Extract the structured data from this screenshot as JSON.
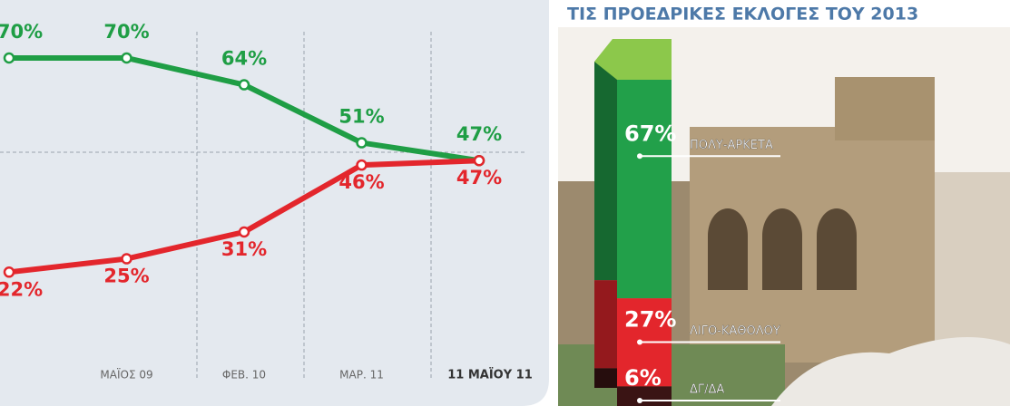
{
  "chart_data": [
    {
      "type": "line",
      "categories": [
        null,
        "ΜΑΪΟΣ 09",
        "ΦΕΒ. 10",
        "ΜΑΡ. 11",
        "11 ΜΑΪΟΥ 11"
      ],
      "series": [
        {
          "color": "#1f9e45",
          "values": [
            70,
            70,
            64,
            51,
            47
          ],
          "value_labels": [
            "70%",
            "70%",
            "64%",
            "51%",
            "47%"
          ]
        },
        {
          "color": "#e3262c",
          "values": [
            22,
            25,
            31,
            46,
            47
          ],
          "value_labels": [
            "22%",
            "25%",
            "31%",
            "46%",
            "47%"
          ]
        }
      ],
      "ylim": [
        -8,
        83
      ]
    },
    {
      "type": "stacked_bar",
      "title": "ΤΙΣ ΠΡΟΕΔΡΙΚΕΣ ΕΚΛΟΓΕΣ ΤΟΥ 2013",
      "series": [
        {
          "name": "ΠΟΛΥ-ΑΡΚΕΤΑ",
          "color": "#22a04a",
          "values": [
            67
          ],
          "value_labels": [
            "67%"
          ]
        },
        {
          "name": "ΛΙΓΟ-ΚΑΘΟΛΟΥ",
          "color": "#e3262c",
          "values": [
            27
          ],
          "value_labels": [
            "27%"
          ]
        },
        {
          "name": "ΔΓ/ΔΑ",
          "color": "#3a1414",
          "values": [
            6
          ],
          "value_labels": [
            "6%"
          ]
        }
      ],
      "ylim": [
        0,
        100
      ]
    }
  ]
}
